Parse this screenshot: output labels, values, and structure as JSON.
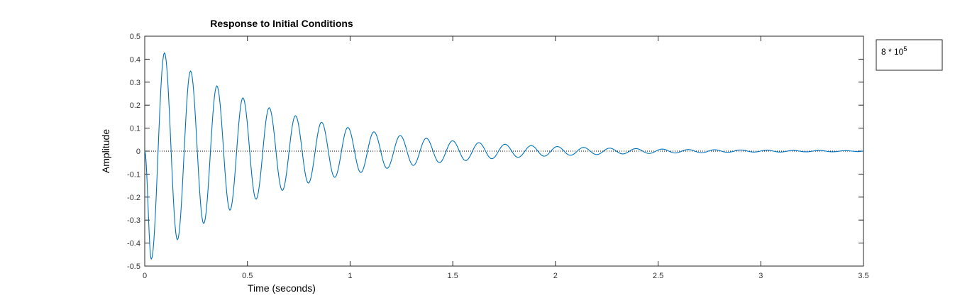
{
  "chart_data": {
    "type": "line",
    "title": "Response to Initial Conditions",
    "xlabel": "Time (seconds)",
    "ylabel": "Amplitude",
    "xlim": [
      0,
      3.5
    ],
    "ylim": [
      -0.5,
      0.5
    ],
    "xticks": [
      0,
      0.5,
      1,
      1.5,
      2,
      2.5,
      3,
      3.5
    ],
    "xtick_labels": [
      "0",
      "0.5",
      "1",
      "1.5",
      "2",
      "2.5",
      "3",
      "3.5"
    ],
    "yticks": [
      -0.5,
      -0.4,
      -0.3,
      -0.2,
      -0.1,
      0,
      0.1,
      0.2,
      0.3,
      0.4,
      0.5
    ],
    "ytick_labels": [
      "-0.5",
      "-0.4",
      "-0.3",
      "-0.2",
      "-0.1",
      "0",
      "0.1",
      "0.2",
      "0.3",
      "0.4",
      "0.5"
    ],
    "grid": false,
    "legend": {
      "placement": "outside-top-right",
      "base_text": "8 * 10",
      "exponent": "5"
    },
    "zero_line": {
      "y": 0,
      "style": "dotted"
    },
    "series": [
      {
        "color": "#0072bd",
        "x": [
          0.0,
          0.032,
          0.096,
          0.159,
          0.223,
          0.287,
          0.351,
          0.415,
          0.478,
          0.542,
          0.606,
          0.67,
          0.734,
          0.797,
          0.861,
          0.925,
          0.989,
          1.052,
          1.116,
          1.18,
          1.244,
          1.308,
          1.371,
          1.435,
          1.499,
          1.563,
          1.627,
          1.69,
          1.754,
          1.818,
          1.882,
          1.945,
          2.009,
          2.073,
          2.137,
          2.201,
          2.264,
          2.328,
          2.392,
          2.456,
          2.52,
          2.583,
          2.647,
          2.711,
          2.775,
          2.838,
          2.902,
          2.966,
          3.03,
          3.094,
          3.157,
          3.221,
          3.285,
          3.349,
          3.413,
          3.476,
          3.5
        ],
        "y": [
          0.0,
          -0.47,
          0.428,
          -0.386,
          0.349,
          -0.315,
          0.284,
          -0.257,
          0.232,
          -0.209,
          0.189,
          -0.171,
          0.154,
          -0.139,
          0.126,
          -0.114,
          0.103,
          -0.093,
          0.084,
          -0.075,
          0.068,
          -0.062,
          0.056,
          -0.05,
          0.045,
          -0.041,
          0.037,
          -0.033,
          0.03,
          -0.027,
          0.024,
          -0.022,
          0.02,
          -0.018,
          0.016,
          -0.015,
          0.013,
          -0.012,
          0.011,
          -0.01,
          0.009,
          -0.008,
          0.007,
          -0.007,
          0.006,
          -0.005,
          0.005,
          -0.004,
          0.004,
          -0.004,
          0.003,
          -0.003,
          0.003,
          -0.003,
          0.002,
          -0.002,
          0.0
        ]
      }
    ]
  }
}
